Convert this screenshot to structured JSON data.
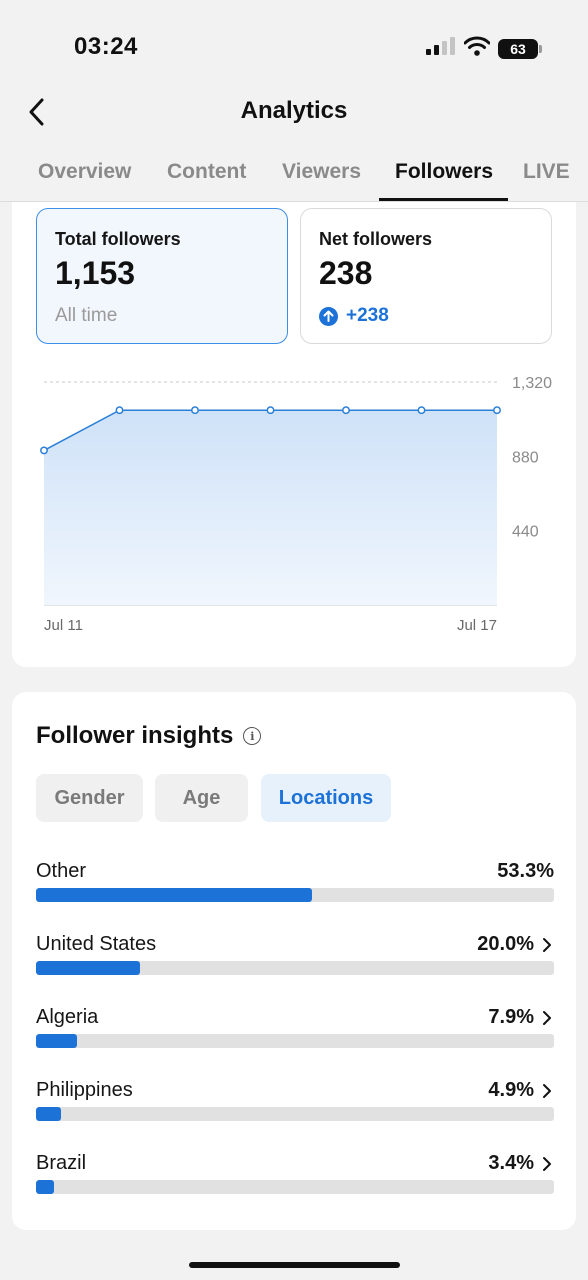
{
  "status_bar": {
    "time": "03:24",
    "battery": "63"
  },
  "nav": {
    "title": "Analytics"
  },
  "tabs": [
    {
      "label": "Overview"
    },
    {
      "label": "Content"
    },
    {
      "label": "Viewers"
    },
    {
      "label": "Followers",
      "active": true
    },
    {
      "label": "LIVE"
    }
  ],
  "metrics": {
    "total": {
      "label": "Total followers",
      "value": "1,153",
      "sub": "All time"
    },
    "net": {
      "label": "Net followers",
      "value": "238",
      "delta": "+238"
    }
  },
  "chart_data": {
    "type": "area",
    "x": [
      "Jul 11",
      "Jul 12",
      "Jul 13",
      "Jul 14",
      "Jul 15",
      "Jul 16",
      "Jul 17"
    ],
    "values": [
      915,
      1153,
      1153,
      1153,
      1153,
      1153,
      1153
    ],
    "x_tick_labels": [
      "Jul 11",
      "Jul 17"
    ],
    "y_ticks": [
      440,
      880,
      1320
    ],
    "y_tick_labels": [
      "440",
      "880",
      "1,320"
    ],
    "ylim": [
      0,
      1320
    ],
    "color": "#1d72d8"
  },
  "insights": {
    "title": "Follower insights",
    "filters": [
      {
        "label": "Gender"
      },
      {
        "label": "Age"
      },
      {
        "label": "Locations",
        "active": true
      }
    ],
    "locations": [
      {
        "name": "Other",
        "percent": "53.3%",
        "fraction": 0.533,
        "has_chevron": false
      },
      {
        "name": "United States",
        "percent": "20.0%",
        "fraction": 0.2,
        "has_chevron": true
      },
      {
        "name": "Algeria",
        "percent": "7.9%",
        "fraction": 0.079,
        "has_chevron": true
      },
      {
        "name": "Philippines",
        "percent": "4.9%",
        "fraction": 0.049,
        "has_chevron": true
      },
      {
        "name": "Brazil",
        "percent": "3.4%",
        "fraction": 0.034,
        "has_chevron": true
      }
    ]
  },
  "colors": {
    "accent": "#1d72d8",
    "selected_card_border": "#3c8ee6"
  }
}
